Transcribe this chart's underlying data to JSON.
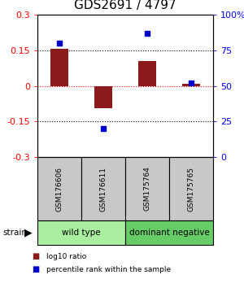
{
  "title": "GDS2691 / 4797",
  "samples": [
    "GSM176606",
    "GSM176611",
    "GSM175764",
    "GSM175765"
  ],
  "log10_ratio": [
    0.155,
    -0.095,
    0.105,
    0.008
  ],
  "percentile_rank": [
    80,
    20,
    87,
    52
  ],
  "groups": [
    {
      "label": "wild type",
      "start": 0,
      "end": 2,
      "color": "#aaeea0"
    },
    {
      "label": "dominant negative",
      "start": 2,
      "end": 4,
      "color": "#66cc66"
    }
  ],
  "bar_color": "#8B1A1A",
  "dot_color": "#0000CD",
  "ylim_left": [
    -0.3,
    0.3
  ],
  "ylim_right": [
    0,
    100
  ],
  "yticks_left": [
    -0.3,
    -0.15,
    0,
    0.15,
    0.3
  ],
  "yticks_right": [
    0,
    25,
    50,
    75,
    100
  ],
  "hlines": [
    {
      "val": -0.15,
      "color": "black",
      "style": "dotted",
      "lw": 0.8
    },
    {
      "val": 0.0,
      "color": "red",
      "style": "dotted",
      "lw": 0.8
    },
    {
      "val": 0.15,
      "color": "black",
      "style": "dotted",
      "lw": 0.8
    }
  ],
  "sample_box_color": "#c8c8c8",
  "legend_items": [
    {
      "color": "#8B1A1A",
      "label": "log10 ratio"
    },
    {
      "color": "#0000CD",
      "label": "percentile rank within the sample"
    }
  ],
  "title_fontsize": 11,
  "tick_fontsize": 8,
  "bar_width": 0.4
}
